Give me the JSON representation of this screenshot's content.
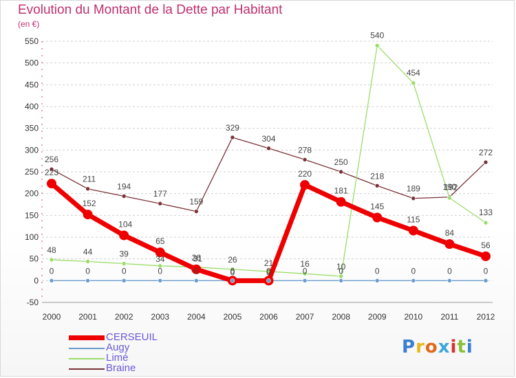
{
  "header": {
    "title": "Evolution du Montant de la Dette par Habitant",
    "unit": "(en €)"
  },
  "colors": {
    "title": "#c0306e",
    "legend_text": "#6a5ad6",
    "gridline": "#cfcfcf",
    "cerseuil": "#ee0000",
    "augy": "#6a9ccc",
    "lime": "#99dd66",
    "braine": "#7a3238"
  },
  "chart_data": {
    "type": "line",
    "title": "Evolution du Montant de la Dette par Habitant",
    "ylabel": "(en €)",
    "xlabel": "",
    "categories": [
      "2000",
      "2001",
      "2002",
      "2003",
      "2004",
      "2005",
      "2006",
      "2007",
      "2008",
      "2009",
      "2010",
      "2011",
      "2012"
    ],
    "ylim": [
      -50,
      550
    ],
    "yticks": [
      -50,
      0,
      50,
      100,
      150,
      200,
      250,
      300,
      350,
      400,
      450,
      500,
      550
    ],
    "grid": "horizontal",
    "legend_placement": "bottom-left",
    "series": [
      {
        "name": "CERSEUIL",
        "color": "#ee0000",
        "values": [
          223,
          152,
          104,
          65,
          26,
          0,
          0,
          220,
          181,
          145,
          115,
          84,
          56
        ],
        "labels": [
          "223",
          "152",
          "104",
          "65",
          "26",
          "0",
          "0",
          "220",
          "181",
          "145",
          "115",
          "84",
          "56"
        ]
      },
      {
        "name": "Augy",
        "color": "#6a9ccc",
        "values": [
          0,
          0,
          0,
          0,
          0,
          0,
          0,
          0,
          0,
          0,
          0,
          0,
          0
        ],
        "labels": [
          "0",
          "0",
          "0",
          "0",
          "0",
          "0",
          "0",
          "0",
          "0",
          "0",
          "0",
          "0",
          "0"
        ]
      },
      {
        "name": "Limé",
        "color": "#99dd66",
        "values": [
          48,
          44,
          39,
          34,
          31,
          26,
          21,
          16,
          10,
          540,
          454,
          190,
          133
        ],
        "labels": [
          "48",
          "44",
          "39",
          "34",
          "31",
          "26",
          "21",
          "16",
          "10",
          "540",
          "454",
          "190",
          "133"
        ]
      },
      {
        "name": "Braine",
        "color": "#7a3238",
        "values": [
          256,
          211,
          194,
          177,
          159,
          329,
          304,
          278,
          250,
          218,
          189,
          192,
          272
        ],
        "labels": [
          "256",
          "211",
          "194",
          "177",
          "159",
          "329",
          "304",
          "278",
          "250",
          "218",
          "189",
          "192",
          "272"
        ],
        "break_after_index": 4
      }
    ]
  },
  "legend": {
    "items": [
      {
        "label": "CERSEUIL",
        "color": "#ee0000"
      },
      {
        "label": "Augy",
        "color": "#6a9ccc"
      },
      {
        "label": "Limé",
        "color": "#99dd66"
      },
      {
        "label": "Braine",
        "color": "#7a3238"
      }
    ]
  },
  "logo": {
    "text": "Proxiti",
    "letter_colors": [
      "#3a7fd0",
      "#e8b820",
      "#e06a1a",
      "#3aa8d8",
      "#d93030",
      "#8ac03a",
      "#3a7fd0"
    ]
  }
}
